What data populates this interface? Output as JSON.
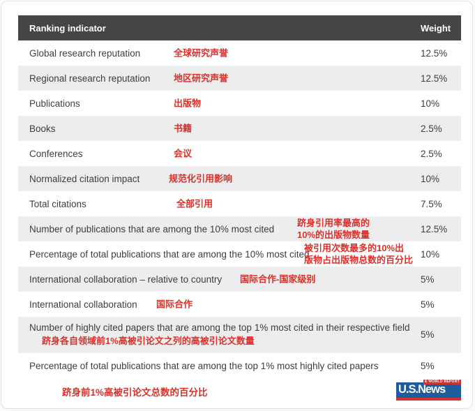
{
  "table": {
    "header": {
      "indicator": "Ranking indicator",
      "weight": "Weight"
    },
    "rows": [
      {
        "en": "Global research reputation",
        "zh": "全球研究声誉",
        "weight": "12.5%"
      },
      {
        "en": "Regional research reputation",
        "zh": "地区研究声誉",
        "weight": "12.5%"
      },
      {
        "en": "Publications",
        "zh": "出版物",
        "weight": "10%"
      },
      {
        "en": "Books",
        "zh": "书籍",
        "weight": "2.5%"
      },
      {
        "en": "Conferences",
        "zh": "会议",
        "weight": "2.5%"
      },
      {
        "en": "Normalized citation impact",
        "zh": "规范化引用影响",
        "weight": "10%"
      },
      {
        "en": "Total citations",
        "zh": "全部引用",
        "weight": "7.5%"
      },
      {
        "en": "Number of publications that are among the 10% most cited",
        "zh": "跻身引用率最高的\n10%的出版物数量",
        "weight": "12.5%"
      },
      {
        "en": "Percentage of total publications that are among the 10% most cited",
        "zh": "被引用次数最多的10%出\n版物占出版物总数的百分比",
        "weight": "10%"
      },
      {
        "en": "International collaboration – relative to country",
        "zh": "国际合作-国家级别",
        "weight": "5%"
      },
      {
        "en": "International collaboration",
        "zh": "国际合作",
        "weight": "5%"
      },
      {
        "en": "Number of highly cited papers that are among the top 1% most cited in their respective field",
        "zh": "跻身各自领域前1%高被引论文之列的高被引论文数量",
        "weight": "5%"
      },
      {
        "en": "Percentage of total publications that are among the top 1% most highly cited papers",
        "zh": "",
        "weight": "5%"
      }
    ]
  },
  "footer": {
    "annotation": "跻身前1%高被引论文总数的百分比",
    "logo": {
      "main": "U.S.News",
      "tagline": "& WORLD REPORT"
    }
  },
  "colors": {
    "header_bg": "#454545",
    "row_alt_bg": "#ededed",
    "annotation_red": "#d9312b",
    "logo_blue": "#1c5c9f",
    "logo_red": "#cc3333"
  }
}
